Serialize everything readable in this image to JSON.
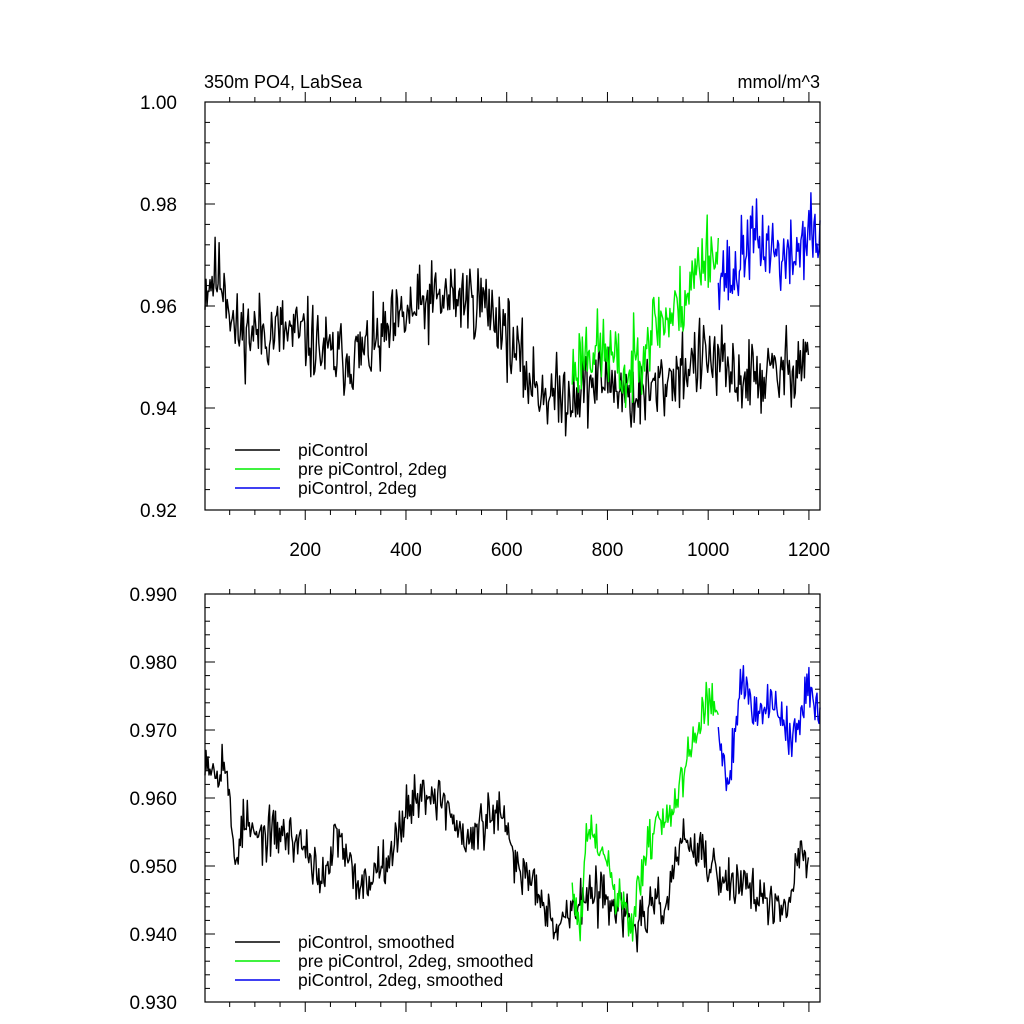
{
  "chart_data": [
    {
      "type": "line",
      "title": "350m PO4, LabSea",
      "units": "mmol/m^3",
      "xlim": [
        1,
        1222
      ],
      "ylim": [
        0.92,
        1.0
      ],
      "xticks": [
        200,
        400,
        600,
        800,
        1000,
        1200
      ],
      "xtick_labels": [
        "200",
        "400",
        "600",
        "800",
        "1000",
        "1200"
      ],
      "yticks": [
        0.92,
        0.94,
        0.96,
        0.98,
        1.0
      ],
      "ytick_labels": [
        "0.92",
        "0.94",
        "0.96",
        "0.98",
        "1.00"
      ],
      "legend_position": "bottom-left",
      "grid": false,
      "series": [
        {
          "name": "piControl",
          "color": "#000000",
          "anchors": [
            [
              1,
              0.964
            ],
            [
              20,
              0.966
            ],
            [
              40,
              0.965
            ],
            [
              60,
              0.955
            ],
            [
              80,
              0.955
            ],
            [
              100,
              0.955
            ],
            [
              150,
              0.955
            ],
            [
              200,
              0.954
            ],
            [
              250,
              0.95
            ],
            [
              300,
              0.95
            ],
            [
              350,
              0.953
            ],
            [
              400,
              0.958
            ],
            [
              450,
              0.961
            ],
            [
              500,
              0.962
            ],
            [
              550,
              0.961
            ],
            [
              580,
              0.958
            ],
            [
              600,
              0.955
            ],
            [
              620,
              0.95
            ],
            [
              650,
              0.945
            ],
            [
              700,
              0.942
            ],
            [
              750,
              0.944
            ],
            [
              800,
              0.946
            ],
            [
              850,
              0.942
            ],
            [
              900,
              0.944
            ],
            [
              950,
              0.948
            ],
            [
              1000,
              0.95
            ],
            [
              1050,
              0.946
            ],
            [
              1100,
              0.946
            ],
            [
              1150,
              0.947
            ],
            [
              1200,
              0.951
            ]
          ],
          "range": [
            1,
            1200
          ],
          "noise": 0.0075,
          "seed": 11
        },
        {
          "name": "pre piControl, 2deg",
          "color": "#00ee00",
          "anchors": [
            [
              730,
              0.947
            ],
            [
              760,
              0.952
            ],
            [
              800,
              0.951
            ],
            [
              840,
              0.945
            ],
            [
              870,
              0.953
            ],
            [
              900,
              0.957
            ],
            [
              930,
              0.958
            ],
            [
              960,
              0.963
            ],
            [
              1000,
              0.972
            ],
            [
              1020,
              0.968
            ]
          ],
          "range": [
            730,
            1020
          ],
          "noise": 0.0075,
          "seed": 23
        },
        {
          "name": "piControl, 2deg",
          "color": "#0000ee",
          "anchors": [
            [
              1020,
              0.968
            ],
            [
              1050,
              0.965
            ],
            [
              1080,
              0.973
            ],
            [
              1120,
              0.972
            ],
            [
              1160,
              0.968
            ],
            [
              1200,
              0.975
            ],
            [
              1220,
              0.972
            ]
          ],
          "range": [
            1020,
            1222
          ],
          "noise": 0.0075,
          "seed": 37
        }
      ]
    },
    {
      "type": "line",
      "title": "",
      "units": "",
      "xlim": [
        1,
        1222
      ],
      "ylim": [
        0.93,
        0.99
      ],
      "xticks": [
        200,
        400,
        600,
        800,
        1000,
        1200
      ],
      "xtick_labels": [],
      "yticks": [
        0.93,
        0.94,
        0.95,
        0.96,
        0.97,
        0.98,
        0.99
      ],
      "ytick_labels": [
        "0.930",
        "0.940",
        "0.950",
        "0.960",
        "0.970",
        "0.980",
        "0.990"
      ],
      "legend_position": "bottom-left",
      "grid": false,
      "series": [
        {
          "name": "piControl, smoothed",
          "color": "#000000",
          "anchors": [
            [
              1,
              0.967
            ],
            [
              20,
              0.964
            ],
            [
              40,
              0.966
            ],
            [
              60,
              0.951
            ],
            [
              80,
              0.957
            ],
            [
              100,
              0.954
            ],
            [
              150,
              0.955
            ],
            [
              200,
              0.953
            ],
            [
              220,
              0.95
            ],
            [
              240,
              0.947
            ],
            [
              260,
              0.955
            ],
            [
              280,
              0.951
            ],
            [
              300,
              0.948
            ],
            [
              320,
              0.947
            ],
            [
              350,
              0.951
            ],
            [
              380,
              0.953
            ],
            [
              400,
              0.959
            ],
            [
              420,
              0.96
            ],
            [
              450,
              0.961
            ],
            [
              480,
              0.959
            ],
            [
              500,
              0.956
            ],
            [
              520,
              0.953
            ],
            [
              550,
              0.956
            ],
            [
              580,
              0.958
            ],
            [
              600,
              0.955
            ],
            [
              620,
              0.95
            ],
            [
              650,
              0.948
            ],
            [
              670,
              0.946
            ],
            [
              700,
              0.941
            ],
            [
              720,
              0.943
            ],
            [
              750,
              0.945
            ],
            [
              800,
              0.946
            ],
            [
              850,
              0.941
            ],
            [
              880,
              0.943
            ],
            [
              920,
              0.945
            ],
            [
              950,
              0.955
            ],
            [
              970,
              0.952
            ],
            [
              1000,
              0.951
            ],
            [
              1030,
              0.947
            ],
            [
              1060,
              0.948
            ],
            [
              1100,
              0.946
            ],
            [
              1130,
              0.943
            ],
            [
              1160,
              0.944
            ],
            [
              1180,
              0.952
            ],
            [
              1200,
              0.951
            ]
          ],
          "range": [
            1,
            1200
          ],
          "noise": 0.0035,
          "seed": 53
        },
        {
          "name": "pre piControl, 2deg, smoothed",
          "color": "#00ee00",
          "anchors": [
            [
              730,
              0.947
            ],
            [
              745,
              0.94
            ],
            [
              760,
              0.955
            ],
            [
              790,
              0.952
            ],
            [
              820,
              0.945
            ],
            [
              850,
              0.941
            ],
            [
              870,
              0.95
            ],
            [
              900,
              0.957
            ],
            [
              930,
              0.958
            ],
            [
              950,
              0.962
            ],
            [
              975,
              0.97
            ],
            [
              1000,
              0.975
            ],
            [
              1020,
              0.972
            ]
          ],
          "range": [
            730,
            1020
          ],
          "noise": 0.0035,
          "seed": 61
        },
        {
          "name": "piControl, 2deg, smoothed",
          "color": "#0000ee",
          "anchors": [
            [
              1020,
              0.97
            ],
            [
              1040,
              0.962
            ],
            [
              1065,
              0.978
            ],
            [
              1090,
              0.973
            ],
            [
              1120,
              0.974
            ],
            [
              1150,
              0.972
            ],
            [
              1170,
              0.968
            ],
            [
              1200,
              0.976
            ],
            [
              1220,
              0.974
            ]
          ],
          "range": [
            1020,
            1222
          ],
          "noise": 0.0035,
          "seed": 79
        }
      ]
    }
  ]
}
